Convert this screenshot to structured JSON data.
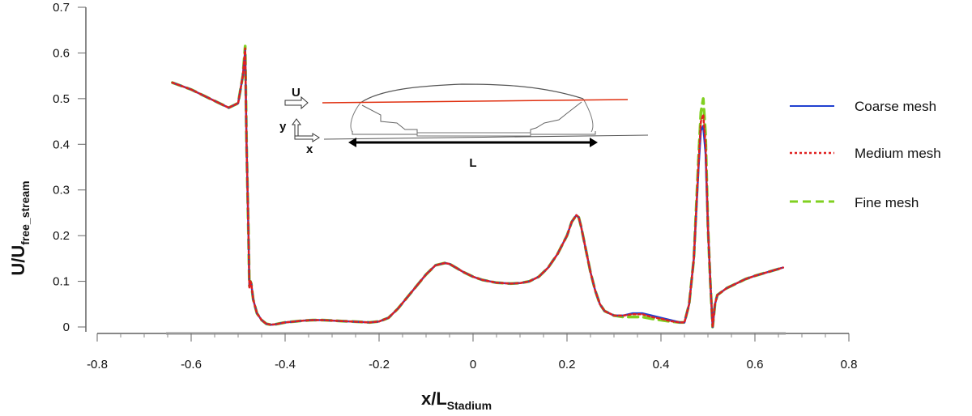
{
  "chart_data": {
    "type": "line",
    "title": "",
    "xlabel": {
      "main": "x/L",
      "subscript": "Stadium"
    },
    "ylabel": {
      "main": "U/U",
      "subscript": "free_stream"
    },
    "xlim": [
      -0.8,
      0.8
    ],
    "ylim": [
      0,
      0.7
    ],
    "xticks": [
      -0.8,
      -0.6,
      -0.4,
      -0.2,
      0,
      0.2,
      0.4,
      0.6,
      0.8
    ],
    "xtick_labels": [
      "-0.8",
      "-0.6",
      "-0.4",
      "-0.2",
      "0",
      "0.2",
      "0.4",
      "0.6",
      "0.8"
    ],
    "yticks": [
      0,
      0.1,
      0.2,
      0.3,
      0.4,
      0.5,
      0.6,
      0.7
    ],
    "ytick_labels": [
      "0",
      "0.1",
      "0.2",
      "0.3",
      "0.4",
      "0.5",
      "0.6",
      "0.7"
    ],
    "grid": false,
    "legend_position": "right",
    "x": [
      -0.64,
      -0.6,
      -0.56,
      -0.52,
      -0.5,
      -0.49,
      -0.485,
      -0.482,
      -0.478,
      -0.476,
      -0.474,
      -0.472,
      -0.468,
      -0.46,
      -0.45,
      -0.44,
      -0.43,
      -0.42,
      -0.4,
      -0.38,
      -0.36,
      -0.34,
      -0.32,
      -0.3,
      -0.28,
      -0.26,
      -0.24,
      -0.22,
      -0.2,
      -0.18,
      -0.16,
      -0.14,
      -0.12,
      -0.1,
      -0.08,
      -0.06,
      -0.05,
      -0.04,
      -0.02,
      0,
      0.02,
      0.05,
      0.08,
      0.1,
      0.12,
      0.14,
      0.16,
      0.18,
      0.2,
      0.21,
      0.22,
      0.225,
      0.23,
      0.24,
      0.25,
      0.26,
      0.27,
      0.28,
      0.3,
      0.32,
      0.34,
      0.36,
      0.38,
      0.4,
      0.42,
      0.44,
      0.45,
      0.46,
      0.47,
      0.48,
      0.485,
      0.49,
      0.495,
      0.5,
      0.505,
      0.51,
      0.515,
      0.52,
      0.54,
      0.56,
      0.58,
      0.6,
      0.62,
      0.64,
      0.66
    ],
    "series": [
      {
        "name": "Coarse mesh",
        "color": "#2040d0",
        "dash": "solid",
        "values": [
          0.535,
          0.52,
          0.5,
          0.48,
          0.49,
          0.55,
          0.605,
          0.4,
          0.2,
          0.09,
          0.1,
          0.095,
          0.06,
          0.03,
          0.015,
          0.007,
          0.005,
          0.006,
          0.01,
          0.012,
          0.014,
          0.015,
          0.015,
          0.014,
          0.013,
          0.012,
          0.011,
          0.01,
          0.012,
          0.02,
          0.04,
          0.065,
          0.09,
          0.115,
          0.135,
          0.14,
          0.138,
          0.132,
          0.12,
          0.11,
          0.103,
          0.097,
          0.095,
          0.096,
          0.1,
          0.11,
          0.13,
          0.16,
          0.2,
          0.23,
          0.245,
          0.24,
          0.22,
          0.17,
          0.12,
          0.08,
          0.05,
          0.035,
          0.025,
          0.025,
          0.03,
          0.03,
          0.025,
          0.02,
          0.015,
          0.01,
          0.01,
          0.05,
          0.15,
          0.35,
          0.43,
          0.44,
          0.38,
          0.22,
          0.1,
          0.0,
          0.05,
          0.07,
          0.085,
          0.095,
          0.105,
          0.112,
          0.118,
          0.124,
          0.13
        ]
      },
      {
        "name": "Medium mesh",
        "color": "#e02020",
        "dash": "dotted",
        "values": [
          0.535,
          0.52,
          0.5,
          0.48,
          0.49,
          0.55,
          0.61,
          0.4,
          0.2,
          0.085,
          0.1,
          0.095,
          0.06,
          0.03,
          0.015,
          0.007,
          0.005,
          0.006,
          0.01,
          0.012,
          0.014,
          0.015,
          0.015,
          0.014,
          0.013,
          0.012,
          0.011,
          0.01,
          0.012,
          0.02,
          0.04,
          0.065,
          0.09,
          0.115,
          0.135,
          0.14,
          0.138,
          0.132,
          0.12,
          0.11,
          0.103,
          0.097,
          0.095,
          0.096,
          0.1,
          0.11,
          0.13,
          0.16,
          0.2,
          0.23,
          0.245,
          0.24,
          0.22,
          0.17,
          0.12,
          0.08,
          0.05,
          0.035,
          0.025,
          0.025,
          0.028,
          0.028,
          0.022,
          0.018,
          0.013,
          0.01,
          0.01,
          0.05,
          0.15,
          0.36,
          0.45,
          0.465,
          0.4,
          0.22,
          0.1,
          0.0,
          0.05,
          0.07,
          0.085,
          0.095,
          0.105,
          0.112,
          0.118,
          0.124,
          0.13
        ]
      },
      {
        "name": "Fine mesh",
        "color": "#80d020",
        "dash": "dashed",
        "values": [
          0.535,
          0.52,
          0.5,
          0.48,
          0.49,
          0.55,
          0.615,
          0.4,
          0.2,
          0.09,
          0.1,
          0.095,
          0.06,
          0.03,
          0.015,
          0.007,
          0.005,
          0.006,
          0.01,
          0.012,
          0.014,
          0.015,
          0.015,
          0.014,
          0.013,
          0.012,
          0.011,
          0.01,
          0.012,
          0.02,
          0.04,
          0.065,
          0.09,
          0.115,
          0.135,
          0.14,
          0.138,
          0.132,
          0.12,
          0.11,
          0.103,
          0.097,
          0.095,
          0.096,
          0.1,
          0.11,
          0.13,
          0.16,
          0.2,
          0.23,
          0.245,
          0.24,
          0.22,
          0.17,
          0.12,
          0.08,
          0.05,
          0.035,
          0.025,
          0.022,
          0.022,
          0.022,
          0.018,
          0.015,
          0.012,
          0.01,
          0.01,
          0.05,
          0.15,
          0.37,
          0.47,
          0.5,
          0.42,
          0.22,
          0.1,
          0.0,
          0.05,
          0.07,
          0.085,
          0.095,
          0.105,
          0.112,
          0.118,
          0.124,
          0.13
        ]
      }
    ],
    "inset": {
      "u_label": "U",
      "y_label": "y",
      "x_label": "x",
      "l_label": "L"
    }
  }
}
